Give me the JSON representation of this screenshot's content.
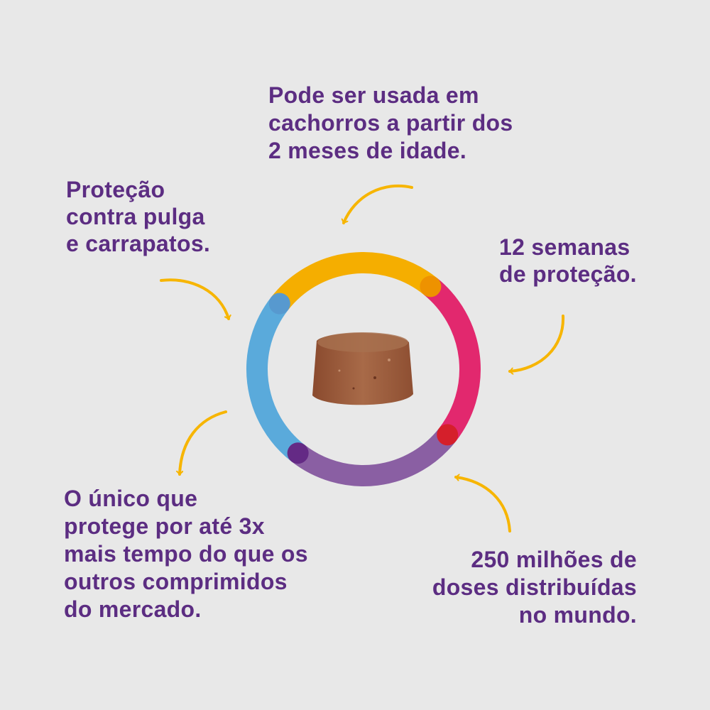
{
  "colors": {
    "text": "#5c2d82",
    "arrow": "#f7b500",
    "ring_yellow": "#f5ae00",
    "ring_pink": "#e2286e",
    "ring_purple": "#8a5fa3",
    "ring_blue": "#5aaadb",
    "dot_orange": "#ee9200",
    "dot_red": "#d51f2b",
    "dot_purple": "#642a85",
    "dot_blue": "#5799cf"
  },
  "icons": {
    "center": "chewable-tablet-image",
    "arrows": "curved-arrow-icon"
  },
  "callouts": [
    {
      "lines": [
        "Pode ser usada em",
        "cachorros a partir dos",
        "2 meses de idade."
      ]
    },
    {
      "lines": [
        "Proteção",
        "contra pulga",
        "e carrapatos."
      ]
    },
    {
      "lines": [
        "12 semanas",
        "de proteção."
      ]
    },
    {
      "lines": [
        "O único que",
        "protege por até 3x",
        "mais tempo do que os",
        "outros comprimidos",
        "do mercado."
      ]
    },
    {
      "lines": [
        "250 milhões de",
        "doses distribuídas",
        "no mundo."
      ]
    }
  ]
}
